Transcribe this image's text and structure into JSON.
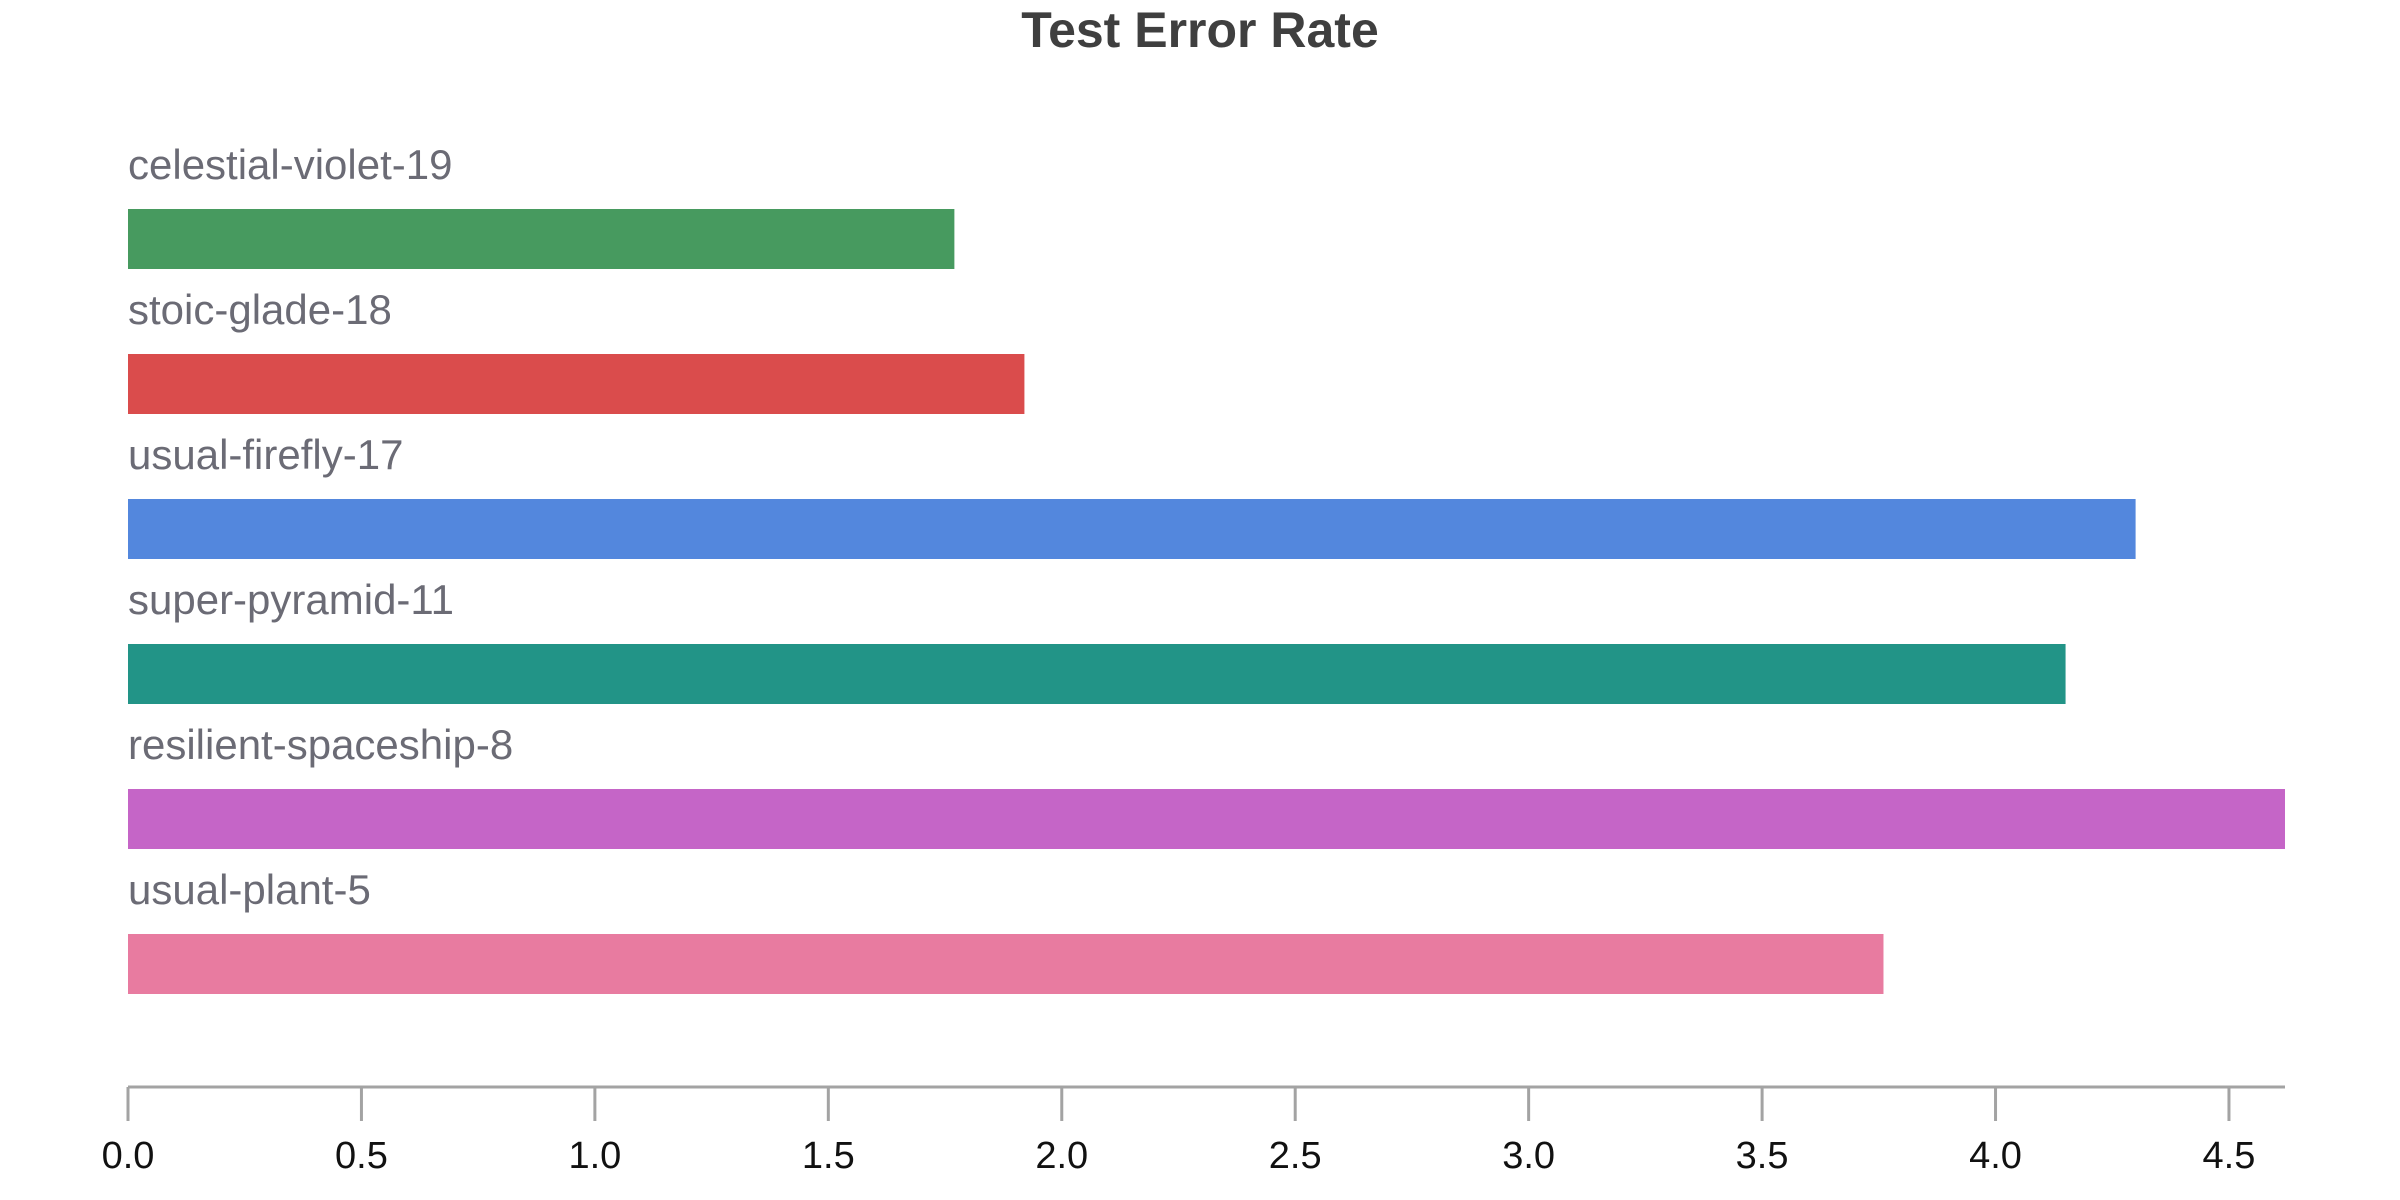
{
  "chart_data": {
    "type": "bar",
    "orientation": "horizontal",
    "title": "Test Error Rate",
    "xlabel": "",
    "ylabel": "",
    "xlim": [
      0,
      4.62
    ],
    "ticks": [
      0.0,
      0.5,
      1.0,
      1.5,
      2.0,
      2.5,
      3.0,
      3.5,
      4.0,
      4.5
    ],
    "tick_labels": [
      "0.0",
      "0.5",
      "1.0",
      "1.5",
      "2.0",
      "2.5",
      "3.0",
      "3.5",
      "4.0",
      "4.5"
    ],
    "grid": false,
    "legend": "none",
    "categories": [
      "celestial-violet-19",
      "stoic-glade-18",
      "usual-firefly-17",
      "super-pyramid-11",
      "resilient-spaceship-8",
      "usual-plant-5"
    ],
    "values": [
      1.77,
      1.92,
      4.3,
      4.15,
      4.62,
      3.76
    ],
    "colors": [
      "#479a5f",
      "#da4c4c",
      "#5387dd",
      "#229487",
      "#c565c7",
      "#e87ba0"
    ],
    "axis_color": "#a3a3a3"
  }
}
